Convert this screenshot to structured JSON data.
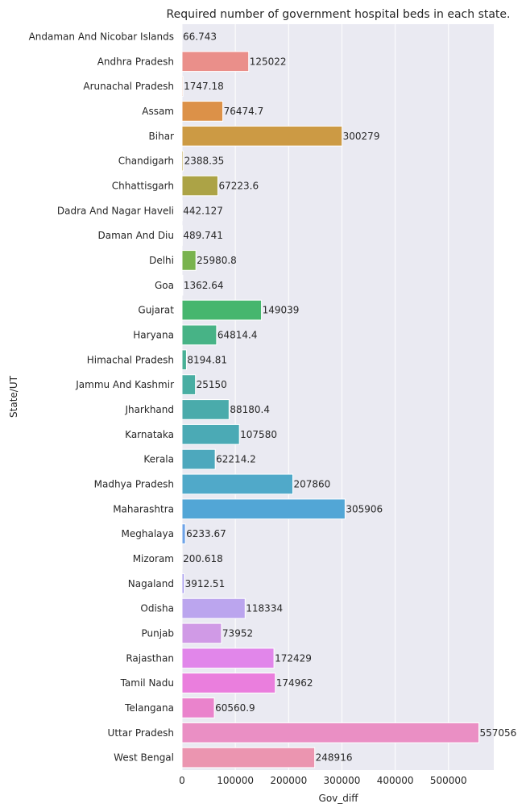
{
  "chart_data": {
    "type": "bar",
    "orientation": "horizontal",
    "title": "Required number of government hospital beds in each state.",
    "xlabel": "Gov_diff",
    "ylabel": "State/UT",
    "xlim": [
      0,
      585000
    ],
    "xticks": [
      0,
      100000,
      200000,
      300000,
      400000,
      500000
    ],
    "xtick_labels": [
      "0",
      "100000",
      "200000",
      "300000",
      "400000",
      "500000"
    ],
    "grid": true,
    "categories": [
      "Andaman And Nicobar Islands",
      "Andhra Pradesh",
      "Arunachal Pradesh",
      "Assam",
      "Bihar",
      "Chandigarh",
      "Chhattisgarh",
      "Dadra And Nagar Haveli",
      "Daman And Diu",
      "Delhi",
      "Goa",
      "Gujarat",
      "Haryana",
      "Himachal Pradesh",
      "Jammu And Kashmir",
      "Jharkhand",
      "Karnataka",
      "Kerala",
      "Madhya Pradesh",
      "Maharashtra",
      "Meghalaya",
      "Mizoram",
      "Nagaland",
      "Odisha",
      "Punjab",
      "Rajasthan",
      "Tamil Nadu",
      "Telangana",
      "Uttar Pradesh",
      "West Bengal"
    ],
    "values": [
      66.743,
      125022,
      1747.18,
      76474.7,
      300279,
      2388.35,
      67223.6,
      442.127,
      489.741,
      25980.8,
      1362.64,
      149039,
      64814.4,
      8194.81,
      25150,
      88180.4,
      107580,
      62214.2,
      207860,
      305906,
      6233.67,
      200.618,
      3912.51,
      118334,
      73952,
      172429,
      174962,
      60560.9,
      557056,
      248916
    ],
    "value_labels": [
      "66.743",
      "125022",
      "1747.18",
      "76474.7",
      "300279",
      "2388.35",
      "67223.6",
      "442.127",
      "489.741",
      "25980.8",
      "1362.64",
      "149039",
      "64814.4",
      "8194.81",
      "25150",
      "88180.4",
      "107580",
      "62214.2",
      "207860",
      "305906",
      "6233.67",
      "200.618",
      "3912.51",
      "118334",
      "73952",
      "172429",
      "174962",
      "60560.9",
      "557056",
      "248916"
    ],
    "colors": [
      "#f77189",
      "#ea8f8a",
      "#e48a6a",
      "#dc9148",
      "#cc9a44",
      "#bba344",
      "#aca346",
      "#9ca745",
      "#8cad4a",
      "#79b34e",
      "#5bb75a",
      "#46b66e",
      "#47b386",
      "#48b096",
      "#49aea3",
      "#4aabab",
      "#4baab5",
      "#4da8bd",
      "#50a9c9",
      "#52a6d6",
      "#6ea3e8",
      "#8f9ff0",
      "#a89cf0",
      "#bba5ee",
      "#d09ae6",
      "#e186ea",
      "#ea7edd",
      "#ea83cc",
      "#ea8fc4",
      "#eb95b0"
    ]
  }
}
